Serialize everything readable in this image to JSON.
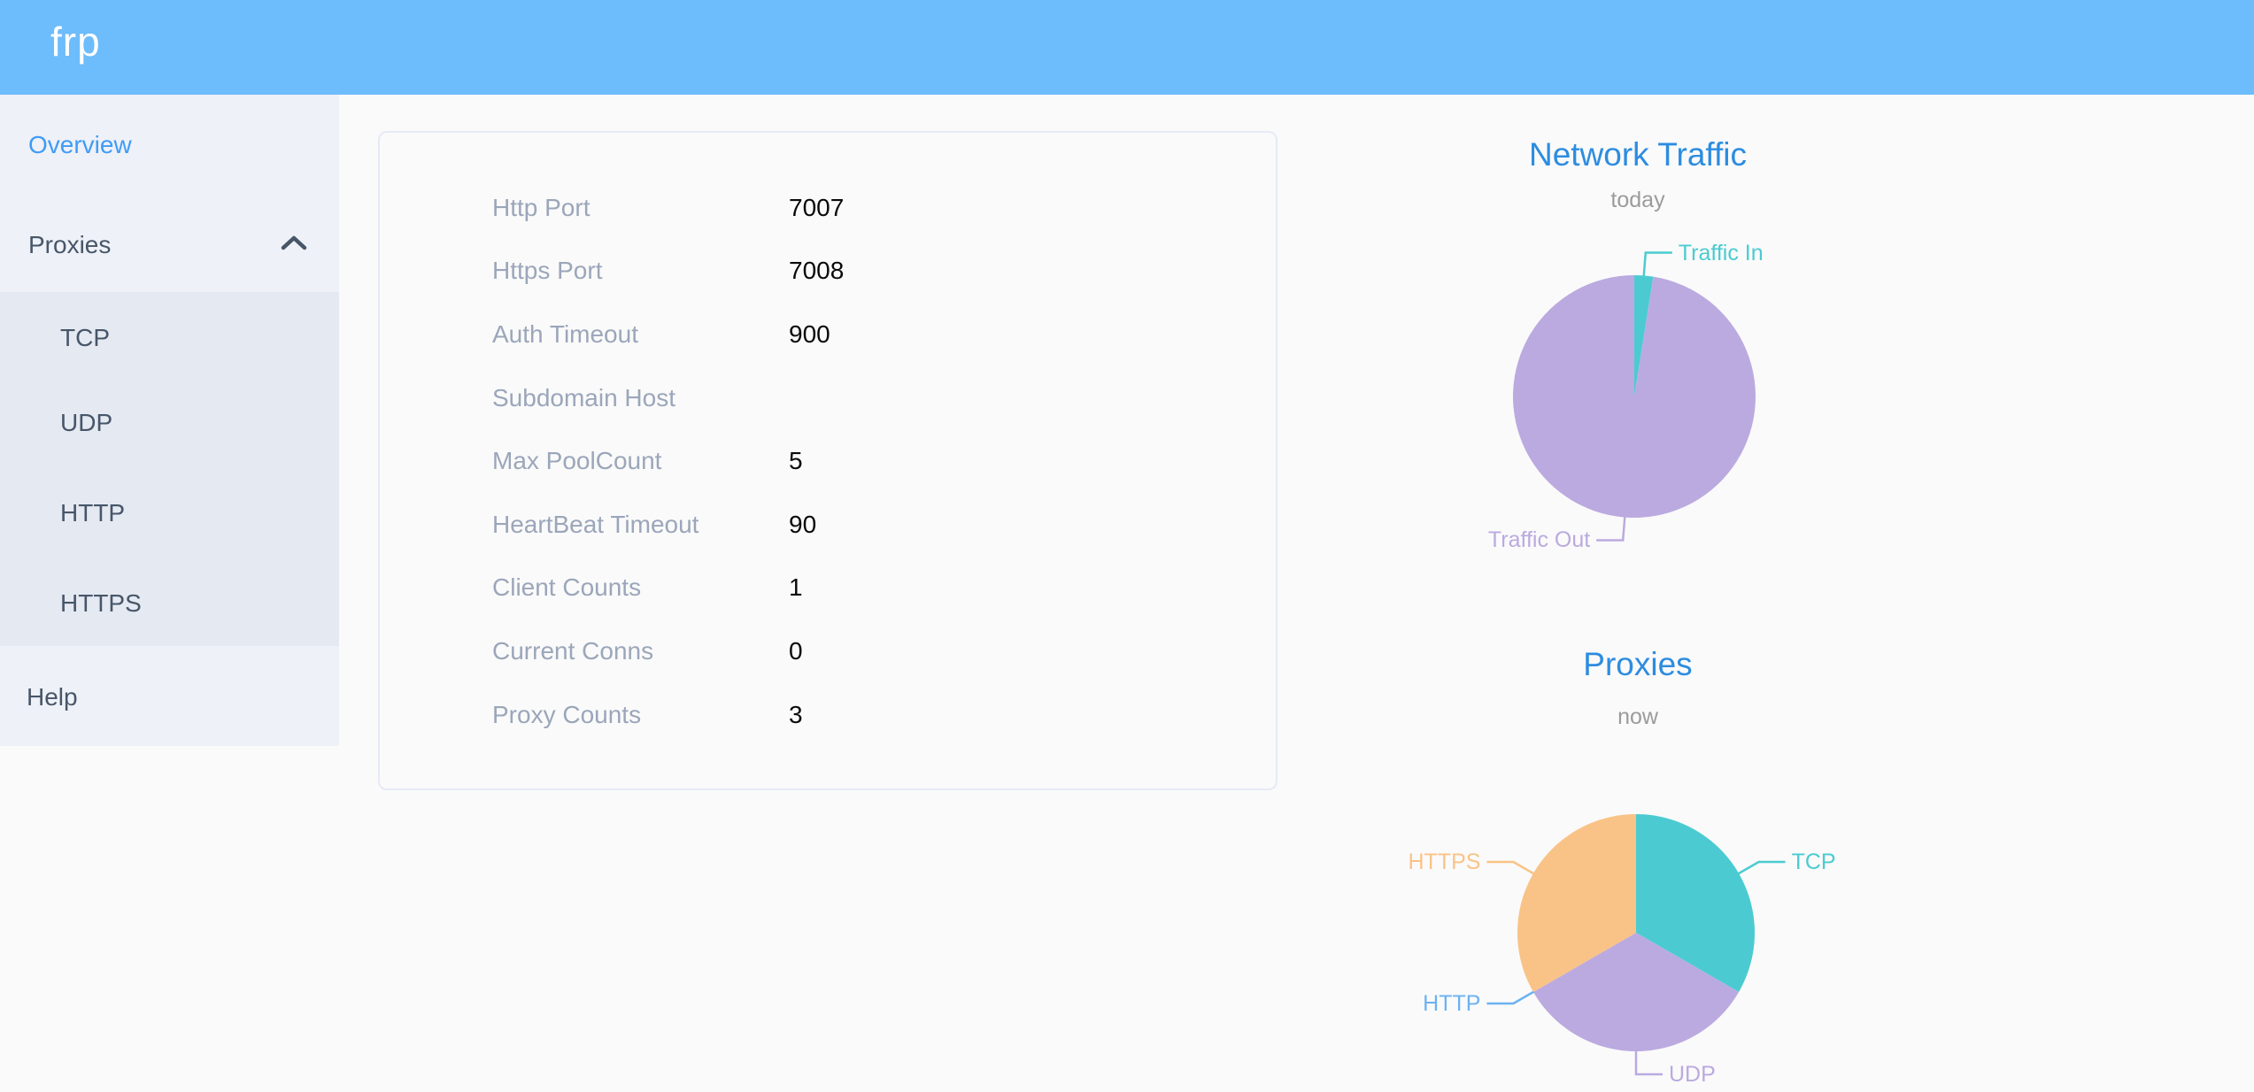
{
  "header": {
    "logo": "frp"
  },
  "sidebar": {
    "items": [
      {
        "label": "Overview",
        "active": true
      },
      {
        "label": "Proxies",
        "expanded": true
      },
      {
        "label": "TCP"
      },
      {
        "label": "UDP"
      },
      {
        "label": "HTTP"
      },
      {
        "label": "HTTPS"
      },
      {
        "label": "Help"
      }
    ]
  },
  "server_info": {
    "rows": [
      {
        "label": "Http Port",
        "value": "7007"
      },
      {
        "label": "Https Port",
        "value": "7008"
      },
      {
        "label": "Auth Timeout",
        "value": "900"
      },
      {
        "label": "Subdomain Host",
        "value": ""
      },
      {
        "label": "Max PoolCount",
        "value": "5"
      },
      {
        "label": "HeartBeat Timeout",
        "value": "90"
      },
      {
        "label": "Client Counts",
        "value": "1"
      },
      {
        "label": "Current Conns",
        "value": "0"
      },
      {
        "label": "Proxy Counts",
        "value": "3"
      }
    ]
  },
  "chart_data": [
    {
      "type": "pie",
      "title": "Network Traffic",
      "subtitle": "today",
      "legend_position": "none",
      "labels_position": "outside",
      "slices": [
        {
          "name": "Traffic In",
          "value": 2.5,
          "color": "#4bcbd1"
        },
        {
          "name": "Traffic Out",
          "value": 97.5,
          "color": "#bbaae0"
        }
      ]
    },
    {
      "type": "pie",
      "title": "Proxies",
      "subtitle": "now",
      "legend_position": "none",
      "labels_position": "outside",
      "slices": [
        {
          "name": "TCP",
          "value": 1,
          "color": "#4bcbd1"
        },
        {
          "name": "UDP",
          "value": 1,
          "color": "#bbaae0"
        },
        {
          "name": "HTTP",
          "value": 0,
          "color": "#6cb2f2"
        },
        {
          "name": "HTTPS",
          "value": 1,
          "color": "#f9c387"
        }
      ]
    }
  ],
  "colors": {
    "header_bg": "#6dbcfb",
    "page_bg": "#fafafa",
    "sidebar_bg": "#eef1f7",
    "submenu_bg": "#e5e9f2",
    "menu_text": "#475669",
    "active_menu_text": "#3f9bf7",
    "title_blue": "#2d8ce0",
    "subtitle_gray": "#9b9b9b",
    "row_label_gray": "#9ba6ba",
    "teal": "#4bcbd1",
    "purple": "#bbaae0",
    "orange": "#f9c387",
    "http_label_blue": "#6cb2f2"
  }
}
